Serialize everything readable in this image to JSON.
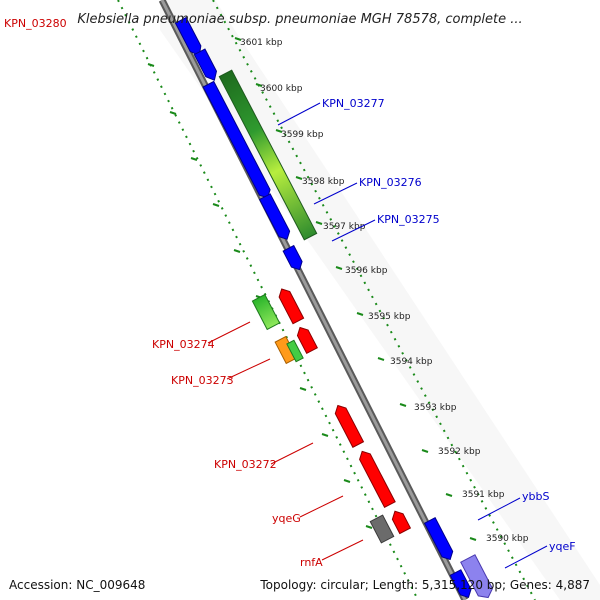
{
  "title": "Klebsiella pneumoniae subsp. pneumoniae MGH 78578, complete ...",
  "footer": {
    "accession": "Accession: NC_009648",
    "topology": "Topology: circular; Length: 5,315,120 bp; Genes: 4,887"
  },
  "colors": {
    "backbone": "#808080",
    "dotted_track": "#1a8a1a",
    "forward_gene_label": "#0000cc",
    "reverse_gene_label": "#cc0000",
    "cds_forward": "#0000ff",
    "cds_reverse": "#ff0000"
  },
  "ticks": [
    "3601 kbp",
    "3600 kbp",
    "3599 kbp",
    "3598 kbp",
    "3597 kbp",
    "3596 kbp",
    "3595 kbp",
    "3594 kbp",
    "3593 kbp",
    "3592 kbp",
    "3591 kbp",
    "3590 kbp"
  ],
  "gene_labels": [
    {
      "text": "KPN_03280",
      "strand": "reverse"
    },
    {
      "text": "KPN_03277",
      "strand": "forward"
    },
    {
      "text": "KPN_03276",
      "strand": "forward"
    },
    {
      "text": "KPN_03275",
      "strand": "forward"
    },
    {
      "text": "KPN_03274",
      "strand": "reverse"
    },
    {
      "text": "KPN_03273",
      "strand": "reverse"
    },
    {
      "text": "KPN_03272",
      "strand": "reverse"
    },
    {
      "text": "ybbS",
      "strand": "forward"
    },
    {
      "text": "yqeG",
      "strand": "reverse"
    },
    {
      "text": "yqeF",
      "strand": "forward"
    },
    {
      "text": "rnfA",
      "strand": "reverse"
    }
  ]
}
